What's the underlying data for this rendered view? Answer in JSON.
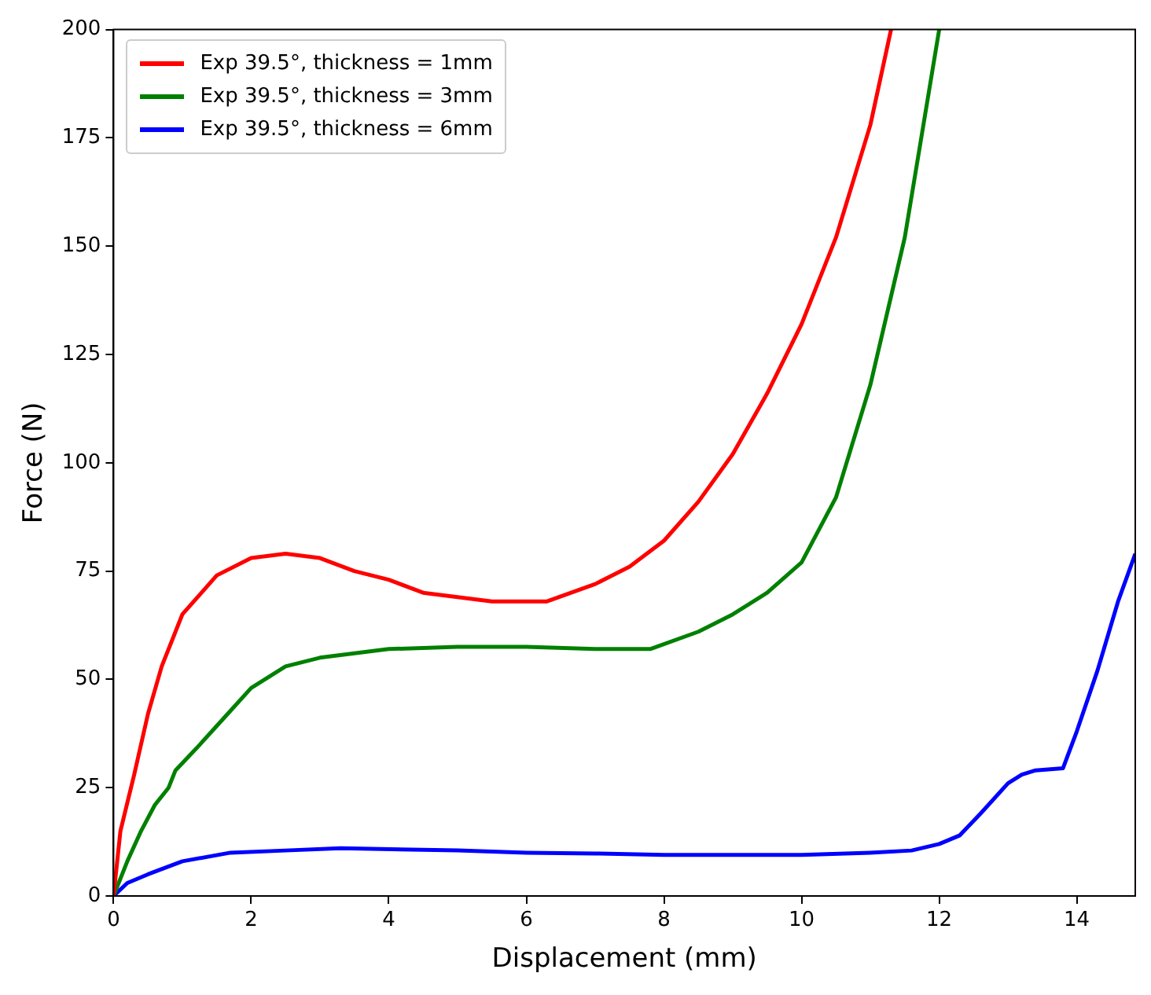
{
  "chart_data": {
    "type": "line",
    "xlabel": "Displacement (mm)",
    "ylabel": "Force (N)",
    "xlim": [
      0,
      14.85
    ],
    "ylim": [
      0,
      200
    ],
    "xticks": [
      0,
      2,
      4,
      6,
      8,
      10,
      12,
      14
    ],
    "yticks": [
      0,
      25,
      50,
      75,
      100,
      125,
      150,
      175,
      200
    ],
    "grid": false,
    "legend": "top left",
    "marker": "none",
    "line_style": "solid",
    "series": [
      {
        "name": "Exp 39.5°, thickness = 1mm",
        "color": "#ff0000",
        "x": [
          0,
          0.1,
          0.3,
          0.5,
          0.7,
          1,
          1.5,
          2,
          2.5,
          3,
          3.5,
          4,
          4.5,
          5,
          5.5,
          6,
          6.3,
          7,
          7.5,
          8,
          8.5,
          9,
          9.5,
          10,
          10.5,
          11,
          11.3
        ],
        "values": [
          0,
          15,
          28,
          42,
          53,
          65,
          74,
          78,
          79,
          78,
          75,
          73,
          70,
          69,
          68,
          68,
          68,
          72,
          76,
          82,
          91,
          102,
          116,
          132,
          152,
          178,
          200
        ]
      },
      {
        "name": "Exp 39.5°, thickness = 3mm",
        "color": "#008000",
        "x": [
          0,
          0.2,
          0.4,
          0.6,
          0.8,
          0.9,
          1.2,
          1.6,
          2,
          2.5,
          3,
          4,
          5,
          6,
          7,
          7.8,
          8.5,
          9,
          9.5,
          10,
          10.5,
          11,
          11.5,
          12
        ],
        "values": [
          0,
          8,
          15,
          21,
          25,
          29,
          34,
          41,
          48,
          53,
          55,
          57,
          57.5,
          57.5,
          57,
          57,
          61,
          65,
          70,
          77,
          92,
          118,
          152,
          200
        ]
      },
      {
        "name": "Exp 39.5°, thickness = 6mm",
        "color": "#0000ff",
        "x": [
          0,
          0.2,
          0.5,
          1,
          1.7,
          2.5,
          3.3,
          5,
          6,
          7,
          8,
          10,
          11,
          11.6,
          12,
          12.3,
          12.6,
          13,
          13.2,
          13.4,
          13.8,
          14,
          14.3,
          14.6,
          14.85
        ],
        "values": [
          0,
          3,
          5,
          8,
          10,
          10.5,
          11,
          10.5,
          10,
          9.8,
          9.5,
          9.5,
          10,
          10.5,
          12,
          14,
          19,
          26,
          28,
          29,
          29.5,
          38,
          52,
          68,
          79
        ]
      }
    ]
  }
}
